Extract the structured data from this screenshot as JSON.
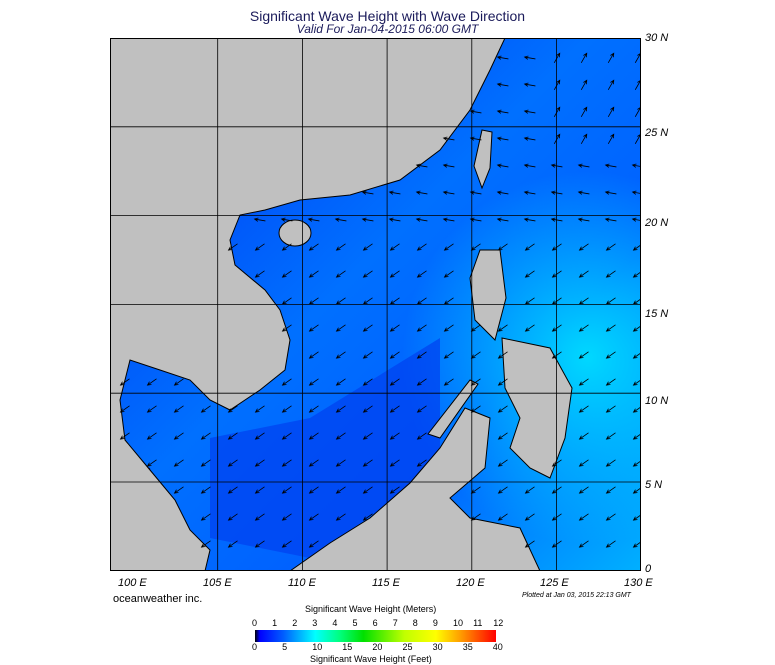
{
  "title": "Significant Wave Height with Wave Direction",
  "subtitle": "Valid For Jan-04-2015 06:00 GMT",
  "map": {
    "lat_labels": [
      "30 N",
      "25 N",
      "20 N",
      "15 N",
      "10 N",
      "5 N",
      "0"
    ],
    "lon_labels": [
      "100 E",
      "105 E",
      "110 E",
      "115 E",
      "120 E",
      "125 E",
      "130 E"
    ],
    "land_color": "#c0c0c0",
    "ocean_colors": {
      "low": "#0010e0",
      "mid": "#0050ff",
      "high": "#00b8ff",
      "very_low": "#000060"
    }
  },
  "brand": "oceanweather inc.",
  "plotted": "Plotted at Jan 03, 2015 22:13 GMT",
  "colorbar": {
    "meters_title": "Significant Wave Height (Meters)",
    "feet_title": "Significant Wave Height (Feet)",
    "meters_ticks": [
      "0",
      "1",
      "2",
      "3",
      "4",
      "5",
      "6",
      "7",
      "8",
      "9",
      "10",
      "11",
      "12"
    ],
    "feet_ticks": [
      "0",
      "5",
      "10",
      "15",
      "20",
      "25",
      "30",
      "35",
      "40"
    ],
    "colors": [
      "#000000",
      "#0000ff",
      "#0060ff",
      "#00ffff",
      "#00ff80",
      "#00e000",
      "#c0ff00",
      "#ffff00",
      "#ffa000",
      "#ff0000"
    ]
  }
}
